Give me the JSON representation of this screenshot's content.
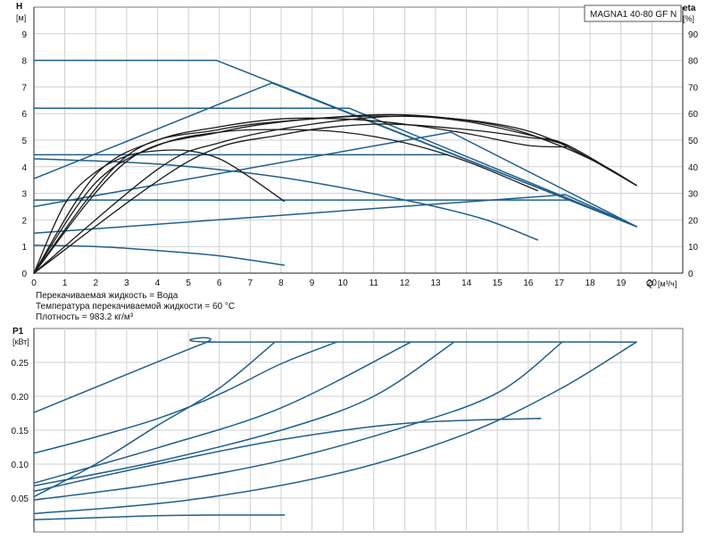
{
  "model_label": "MAGNA1 40-80 GF N",
  "notes": [
    "Перекачиваемая жидкость = Вода",
    "Температура перекачиваемой жидкости = 60 °C",
    "Плотность = 983.2 кг/м³"
  ],
  "colors": {
    "blue": "#1f5f8b",
    "black": "#1a1a1a",
    "grid": "#cfcfcf"
  },
  "chart_data": [
    {
      "type": "line",
      "title": "MAGNA1 40-80 GF N",
      "ylabel": "H",
      "ylabel_unit": "[м]",
      "y2label": "eta",
      "y2label_unit": "[%]",
      "xlabel": "Q",
      "xlabel_unit": "[м³/ч]",
      "xlim": [
        0,
        21
      ],
      "ylim": [
        0,
        10
      ],
      "y2lim": [
        0,
        100
      ],
      "xticks": [
        0,
        1,
        2,
        3,
        4,
        5,
        6,
        7,
        8,
        9,
        10,
        11,
        12,
        13,
        14,
        15,
        16,
        17,
        18,
        19,
        20
      ],
      "yticks": [
        0,
        1,
        2,
        3,
        4,
        5,
        6,
        7,
        8,
        9
      ],
      "y2ticks": [
        0,
        10,
        20,
        30,
        40,
        50,
        60,
        70,
        80,
        90
      ],
      "grid": true,
      "series": [
        {
          "color": "blue",
          "points": [
            [
              0,
              8.0
            ],
            [
              5.9,
              8.0
            ],
            [
              19.5,
              1.75
            ]
          ]
        },
        {
          "color": "blue",
          "points": [
            [
              0,
              3.55
            ],
            [
              7.7,
              7.15
            ],
            [
              19.5,
              1.75
            ]
          ]
        },
        {
          "color": "blue",
          "points": [
            [
              0,
              6.2
            ],
            [
              10.2,
              6.2
            ],
            [
              19.5,
              1.75
            ]
          ]
        },
        {
          "color": "blue",
          "points": [
            [
              0,
              2.5
            ],
            [
              13.5,
              5.3
            ],
            [
              19.5,
              1.75
            ]
          ]
        },
        {
          "color": "blue",
          "points": [
            [
              0,
              4.45
            ],
            [
              13.4,
              4.45
            ]
          ]
        },
        {
          "color": "blue",
          "points": [
            [
              0,
              1.5
            ],
            [
              17.2,
              2.95
            ],
            [
              19.5,
              1.75
            ]
          ]
        },
        {
          "color": "blue",
          "points": [
            [
              0,
              2.75
            ],
            [
              17.3,
              2.75
            ]
          ]
        },
        {
          "color": "blue",
          "points": [
            [
              0,
              4.3
            ],
            [
              4,
              4.1
            ],
            [
              8,
              3.6
            ],
            [
              12,
              2.75
            ],
            [
              14.5,
              2.05
            ],
            [
              16.3,
              1.25
            ]
          ]
        },
        {
          "color": "blue",
          "points": [
            [
              0,
              1.05
            ],
            [
              2,
              1.0
            ],
            [
              4,
              0.85
            ],
            [
              6,
              0.65
            ],
            [
              8.1,
              0.3
            ]
          ]
        },
        {
          "color": "black",
          "points": [
            [
              0,
              0
            ],
            [
              1,
              2.6
            ],
            [
              2,
              3.8
            ],
            [
              3,
              4.4
            ],
            [
              4,
              4.6
            ],
            [
              5,
              4.6
            ],
            [
              6,
              4.3
            ],
            [
              7,
              3.6
            ],
            [
              8.1,
              2.7
            ]
          ]
        },
        {
          "color": "black",
          "points": [
            [
              0,
              0
            ],
            [
              2,
              3.4
            ],
            [
              4,
              4.8
            ],
            [
              6,
              5.3
            ],
            [
              8,
              5.4
            ],
            [
              10,
              5.3
            ],
            [
              12,
              4.9
            ],
            [
              14,
              4.2
            ],
            [
              16.3,
              3.1
            ]
          ]
        },
        {
          "color": "black",
          "points": [
            [
              0,
              0
            ],
            [
              2,
              3.7
            ],
            [
              4,
              5.0
            ],
            [
              6,
              5.5
            ],
            [
              8,
              5.8
            ],
            [
              10,
              5.8
            ],
            [
              12,
              5.6
            ],
            [
              14,
              5.25
            ],
            [
              16,
              4.8
            ],
            [
              17.3,
              4.75
            ]
          ]
        },
        {
          "color": "black",
          "points": [
            [
              0,
              0
            ],
            [
              3,
              4.2
            ],
            [
              6,
              5.3
            ],
            [
              9,
              5.8
            ],
            [
              12,
              5.9
            ],
            [
              14,
              5.7
            ],
            [
              16,
              5.2
            ],
            [
              17.3,
              4.8
            ]
          ]
        },
        {
          "color": "black",
          "points": [
            [
              0,
              0
            ],
            [
              3,
              4.4
            ],
            [
              6,
              5.4
            ],
            [
              9,
              5.8
            ],
            [
              12,
              5.95
            ],
            [
              15,
              5.55
            ],
            [
              17,
              4.8
            ],
            [
              18.5,
              4.0
            ],
            [
              19.5,
              3.3
            ]
          ]
        },
        {
          "color": "black",
          "points": [
            [
              0,
              0
            ],
            [
              4,
              3.9
            ],
            [
              6,
              4.9
            ],
            [
              9,
              5.6
            ],
            [
              12,
              5.9
            ],
            [
              15,
              5.6
            ],
            [
              17,
              4.9
            ],
            [
              19.5,
              3.3
            ]
          ]
        },
        {
          "color": "black",
          "points": [
            [
              0,
              0
            ],
            [
              5,
              4.2
            ],
            [
              8,
              5.2
            ],
            [
              11,
              5.6
            ],
            [
              14,
              5.4
            ],
            [
              16,
              5.1
            ],
            [
              17.2,
              4.85
            ],
            [
              19.5,
              3.3
            ]
          ]
        }
      ]
    },
    {
      "type": "line",
      "ylabel": "P1",
      "ylabel_unit": "[кВт]",
      "xlim": [
        0,
        21
      ],
      "ylim": [
        0,
        0.3
      ],
      "yticks": [
        0.05,
        0.1,
        0.15,
        0.2,
        0.25
      ],
      "ytick_labels": [
        "0.05",
        "0.10",
        "0.15",
        "0.20",
        "0.25"
      ],
      "grid": true,
      "series": [
        {
          "color": "blue",
          "points": [
            [
              0,
              0.176
            ],
            [
              5.5,
              0.278
            ],
            [
              6,
              0.28
            ],
            [
              19.5,
              0.28
            ]
          ]
        },
        {
          "color": "blue",
          "points": [
            [
              0,
              0.116
            ],
            [
              2,
              0.14
            ],
            [
              4,
              0.167
            ],
            [
              6,
              0.203
            ],
            [
              8,
              0.248
            ],
            [
              9.8,
              0.28
            ]
          ]
        },
        {
          "color": "blue",
          "points": [
            [
              0,
              0.052
            ],
            [
              2,
              0.1
            ],
            [
              4,
              0.157
            ],
            [
              6,
              0.212
            ],
            [
              7.8,
              0.28
            ]
          ]
        },
        {
          "color": "blue",
          "points": [
            [
              0,
              0.072
            ],
            [
              4,
              0.124
            ],
            [
              8,
              0.183
            ],
            [
              12.2,
              0.28
            ]
          ]
        },
        {
          "color": "blue",
          "points": [
            [
              0,
              0.068
            ],
            [
              4,
              0.104
            ],
            [
              8,
              0.15
            ],
            [
              11,
              0.2
            ],
            [
              13.6,
              0.28
            ]
          ]
        },
        {
          "color": "blue",
          "points": [
            [
              0,
              0.047
            ],
            [
              4,
              0.071
            ],
            [
              8,
              0.105
            ],
            [
              12,
              0.155
            ],
            [
              15,
              0.205
            ],
            [
              17.1,
              0.28
            ]
          ]
        },
        {
          "color": "blue",
          "points": [
            [
              0,
              0.027
            ],
            [
              5,
              0.047
            ],
            [
              10,
              0.088
            ],
            [
              14,
              0.145
            ],
            [
              17,
              0.21
            ],
            [
              19.5,
              0.28
            ]
          ]
        },
        {
          "color": "blue",
          "points": [
            [
              0,
              0.06
            ],
            [
              4,
              0.1
            ],
            [
              8,
              0.136
            ],
            [
              12,
              0.16
            ],
            [
              16,
              0.167
            ],
            [
              16.3,
              0.167
            ]
          ]
        },
        {
          "color": "blue",
          "points": [
            [
              0,
              0.018
            ],
            [
              2,
              0.021
            ],
            [
              4,
              0.024
            ],
            [
              6,
              0.025
            ],
            [
              8.1,
              0.025
            ]
          ]
        }
      ]
    }
  ]
}
